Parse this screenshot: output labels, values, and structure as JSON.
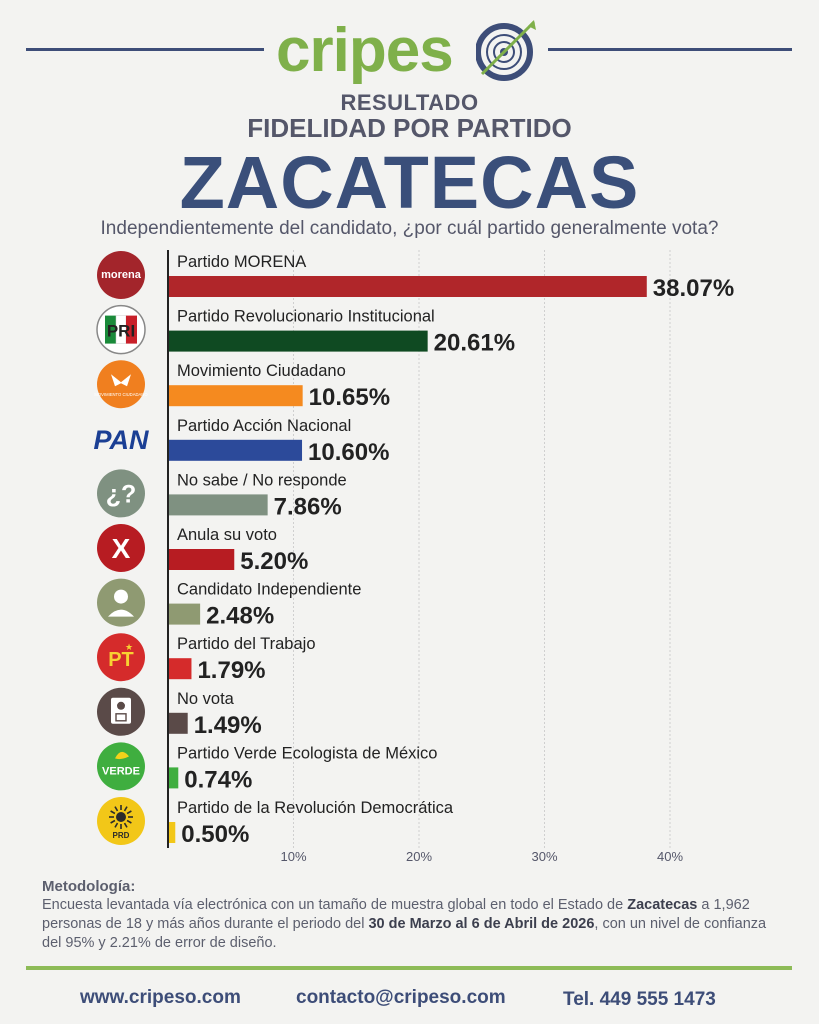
{
  "brand": {
    "name_green": "cripes",
    "name_blue": "o"
  },
  "header": {
    "line1": "RESULTADO",
    "line2": "FIDELIDAD POR PARTIDO",
    "title": "ZACATECAS",
    "question": "Independientemente del candidato, ¿por cuál partido generalmente vota?"
  },
  "colors": {
    "accent_green": "#8dbb57",
    "navy": "#3d4d78"
  },
  "chart_data": {
    "type": "bar",
    "orientation": "horizontal",
    "categories": [
      "Partido MORENA",
      "Partido Revolucionario Institucional",
      "Movimiento Ciudadano",
      "Partido Acción Nacional",
      "No sabe / No responde",
      "Anula su voto",
      "Candidato Independiente",
      "Partido del Trabajo",
      "No vota",
      "Partido Verde Ecologista de México",
      "Partido de la Revolución Democrática"
    ],
    "values": [
      38.07,
      20.61,
      10.65,
      10.6,
      7.86,
      5.2,
      2.48,
      1.79,
      1.49,
      0.74,
      0.5
    ],
    "value_labels": [
      "38.07%",
      "20.61%",
      "10.65%",
      "10.60%",
      "7.86%",
      "5.20%",
      "2.48%",
      "1.79%",
      "1.49%",
      "0.74%",
      "0.50%"
    ],
    "colors": [
      "#b0262a",
      "#0f4a22",
      "#f58a1f",
      "#2c4a9a",
      "#7f9181",
      "#b71c22",
      "#8f9a72",
      "#d52b2b",
      "#5a4a48",
      "#3fae3f",
      "#f2c718"
    ],
    "icons": [
      "morena-logo",
      "pri-logo",
      "movimiento-ciudadano-logo",
      "pan-logo",
      "question-icon",
      "cross-icon",
      "person-icon",
      "pt-logo",
      "ballot-icon",
      "verde-logo",
      "prd-logo"
    ],
    "icon_texts": [
      "morena",
      "PRI",
      "MOVIMIENTO CIUDADANO",
      "PAN",
      "¿?",
      "X",
      "",
      "PT",
      "",
      "VERDE",
      "PRD"
    ],
    "xlim": [
      0,
      40
    ],
    "xticks": [
      10,
      20,
      30,
      40
    ],
    "xtick_labels": [
      "10%",
      "20%",
      "30%",
      "40%"
    ],
    "grid": true
  },
  "methodology": {
    "title": "Metodología:",
    "t1": "Encuesta levantada vía electrónica con un tamaño de muestra global en todo el Estado de ",
    "b1": "Zacatecas",
    "t2": " a 1,962 personas de 18 y más años durante el periodo del ",
    "b2": "30 de Marzo al 6 de Abril de 2026",
    "t3": ", con un nivel de confianza del 95% y 2.21% de error de diseño."
  },
  "footer": {
    "website": "www.cripeso.com",
    "email": "contacto@cripeso.com",
    "phone": "Tel. 449 555 1473"
  }
}
